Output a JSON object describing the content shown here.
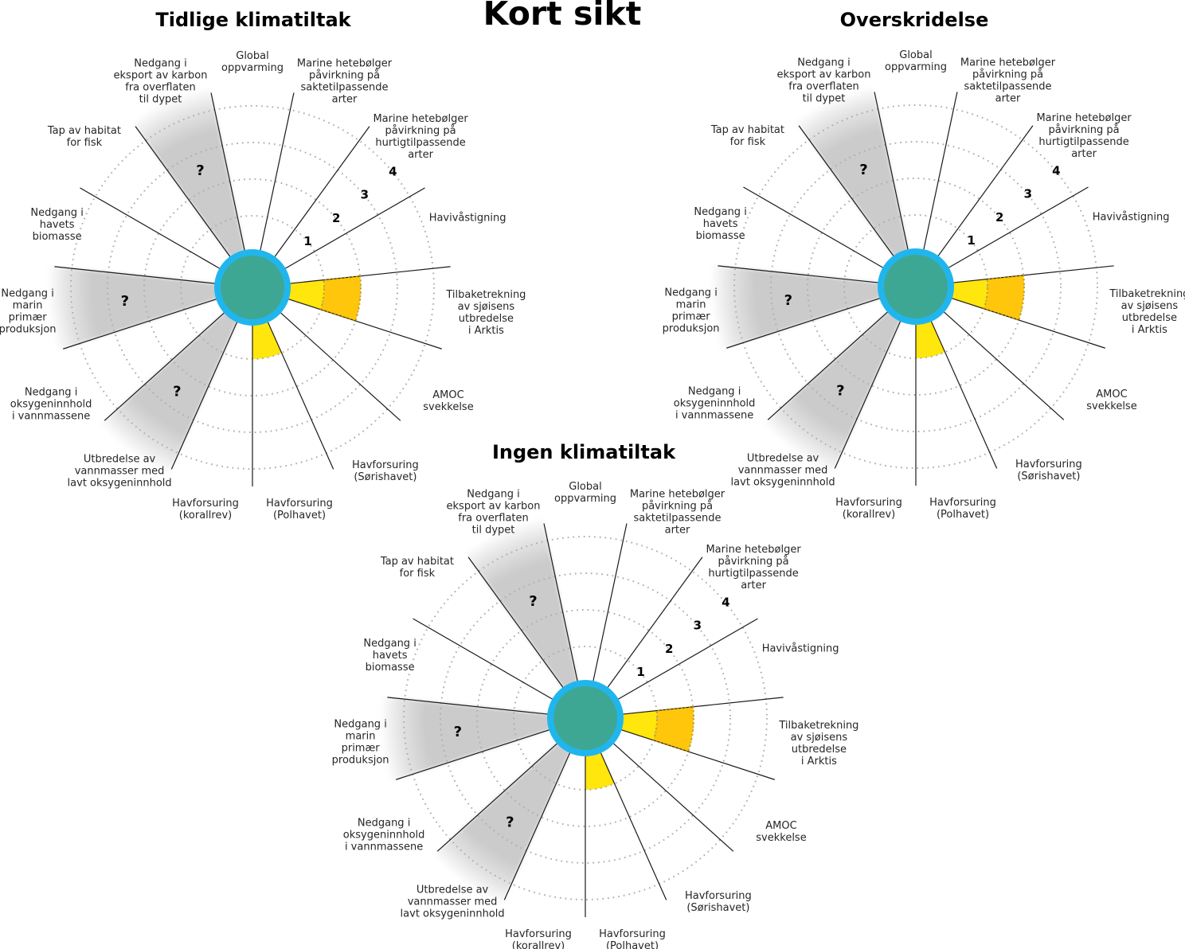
{
  "main_title": "Kort sikt",
  "colors": {
    "center_fill": "#3EA794",
    "center_ring": "#20B6ED",
    "risk_level_1_yellow": "#FFE60C",
    "risk_level_2_gold": "#FFC60B",
    "gold_dotted_outline": "#C49C00",
    "uncertain_gray": "#CBCBCB",
    "grid_dots": "#AEAEAE",
    "spoke_line": "#1A1A1A",
    "label_text": "#262626",
    "title_text": "#000000"
  },
  "chart_data": {
    "type": "polar-ember-small-multiples",
    "radial_ticks": [
      1,
      2,
      3,
      4
    ],
    "radial_axis_max": 4,
    "uncertain_marker": "?",
    "grid": "dotted-circles",
    "categories": [
      {
        "label": "Global oppvarming",
        "lines": [
          "Global",
          "oppvarming"
        ]
      },
      {
        "label": "Marine hetebølger påvirkning på saktetilpassende arter",
        "lines": [
          "Marine hetebølger",
          "påvirkning på",
          "saktetilpassende",
          "arter"
        ]
      },
      {
        "label": "Marine hetebølger påvirkning på hurtigtilpassende arter",
        "lines": [
          "Marine hetebølger",
          "påvirkning på",
          "hurtigtilpassende",
          "arter"
        ]
      },
      {
        "label": "Havivåstigning",
        "lines": [
          "Havivåstigning"
        ]
      },
      {
        "label": "Tilbaketrekning av sjøisens utbredelse i Arktis",
        "lines": [
          "Tilbaketrekning",
          "av sjøisens",
          "utbredelse",
          "i Arktis"
        ]
      },
      {
        "label": "AMOC svekkelse",
        "lines": [
          "AMOC",
          "svekkelse"
        ]
      },
      {
        "label": "Havforsuring (Sørishavet)",
        "lines": [
          "Havforsuring",
          "(Sørishavet)"
        ]
      },
      {
        "label": "Havforsuring (Polhavet)",
        "lines": [
          "Havforsuring",
          "(Polhavet)"
        ]
      },
      {
        "label": "Havforsuring (korallrev)",
        "lines": [
          "Havforsuring",
          "(korallrev)"
        ]
      },
      {
        "label": "Utbredelse av vannmasser med lavt oksygeninnhold",
        "lines": [
          "Utbredelse av",
          "vannmasser med",
          "lavt oksygeninnhold"
        ]
      },
      {
        "label": "Nedgang i oksygeninnhold i vannmassene",
        "lines": [
          "Nedgang i",
          "oksygeninnhold",
          "i vannmassene"
        ]
      },
      {
        "label": "Nedgang i marin primær produksjon",
        "lines": [
          "Nedgang i",
          "marin",
          "primær",
          "produksjon"
        ]
      },
      {
        "label": "Nedgang i havets biomasse",
        "lines": [
          "Nedgang i",
          "havets",
          "biomasse"
        ]
      },
      {
        "label": "Tap av habitat for fisk",
        "lines": [
          "Tap av habitat",
          "for fisk"
        ]
      },
      {
        "label": "Nedgang i eksport av karbon fra overflaten til dypet",
        "lines": [
          "Nedgang i",
          "eksport av karbon",
          "fra overflaten",
          "til dypet"
        ]
      }
    ],
    "charts": [
      {
        "title": "Tidlige klimatiltak",
        "values": [
          0,
          0,
          0,
          0,
          2,
          0,
          0,
          1,
          0,
          null,
          0,
          null,
          0,
          0,
          null
        ]
      },
      {
        "title": "Overskridelse",
        "values": [
          0,
          0,
          0,
          0,
          2,
          0,
          0,
          1,
          0,
          null,
          0,
          null,
          0,
          0,
          null
        ]
      },
      {
        "title": "Ingen klimatiltak",
        "values": [
          0,
          0,
          0,
          0,
          2,
          0,
          0,
          1,
          0,
          null,
          0,
          null,
          0,
          0,
          null
        ]
      }
    ]
  }
}
